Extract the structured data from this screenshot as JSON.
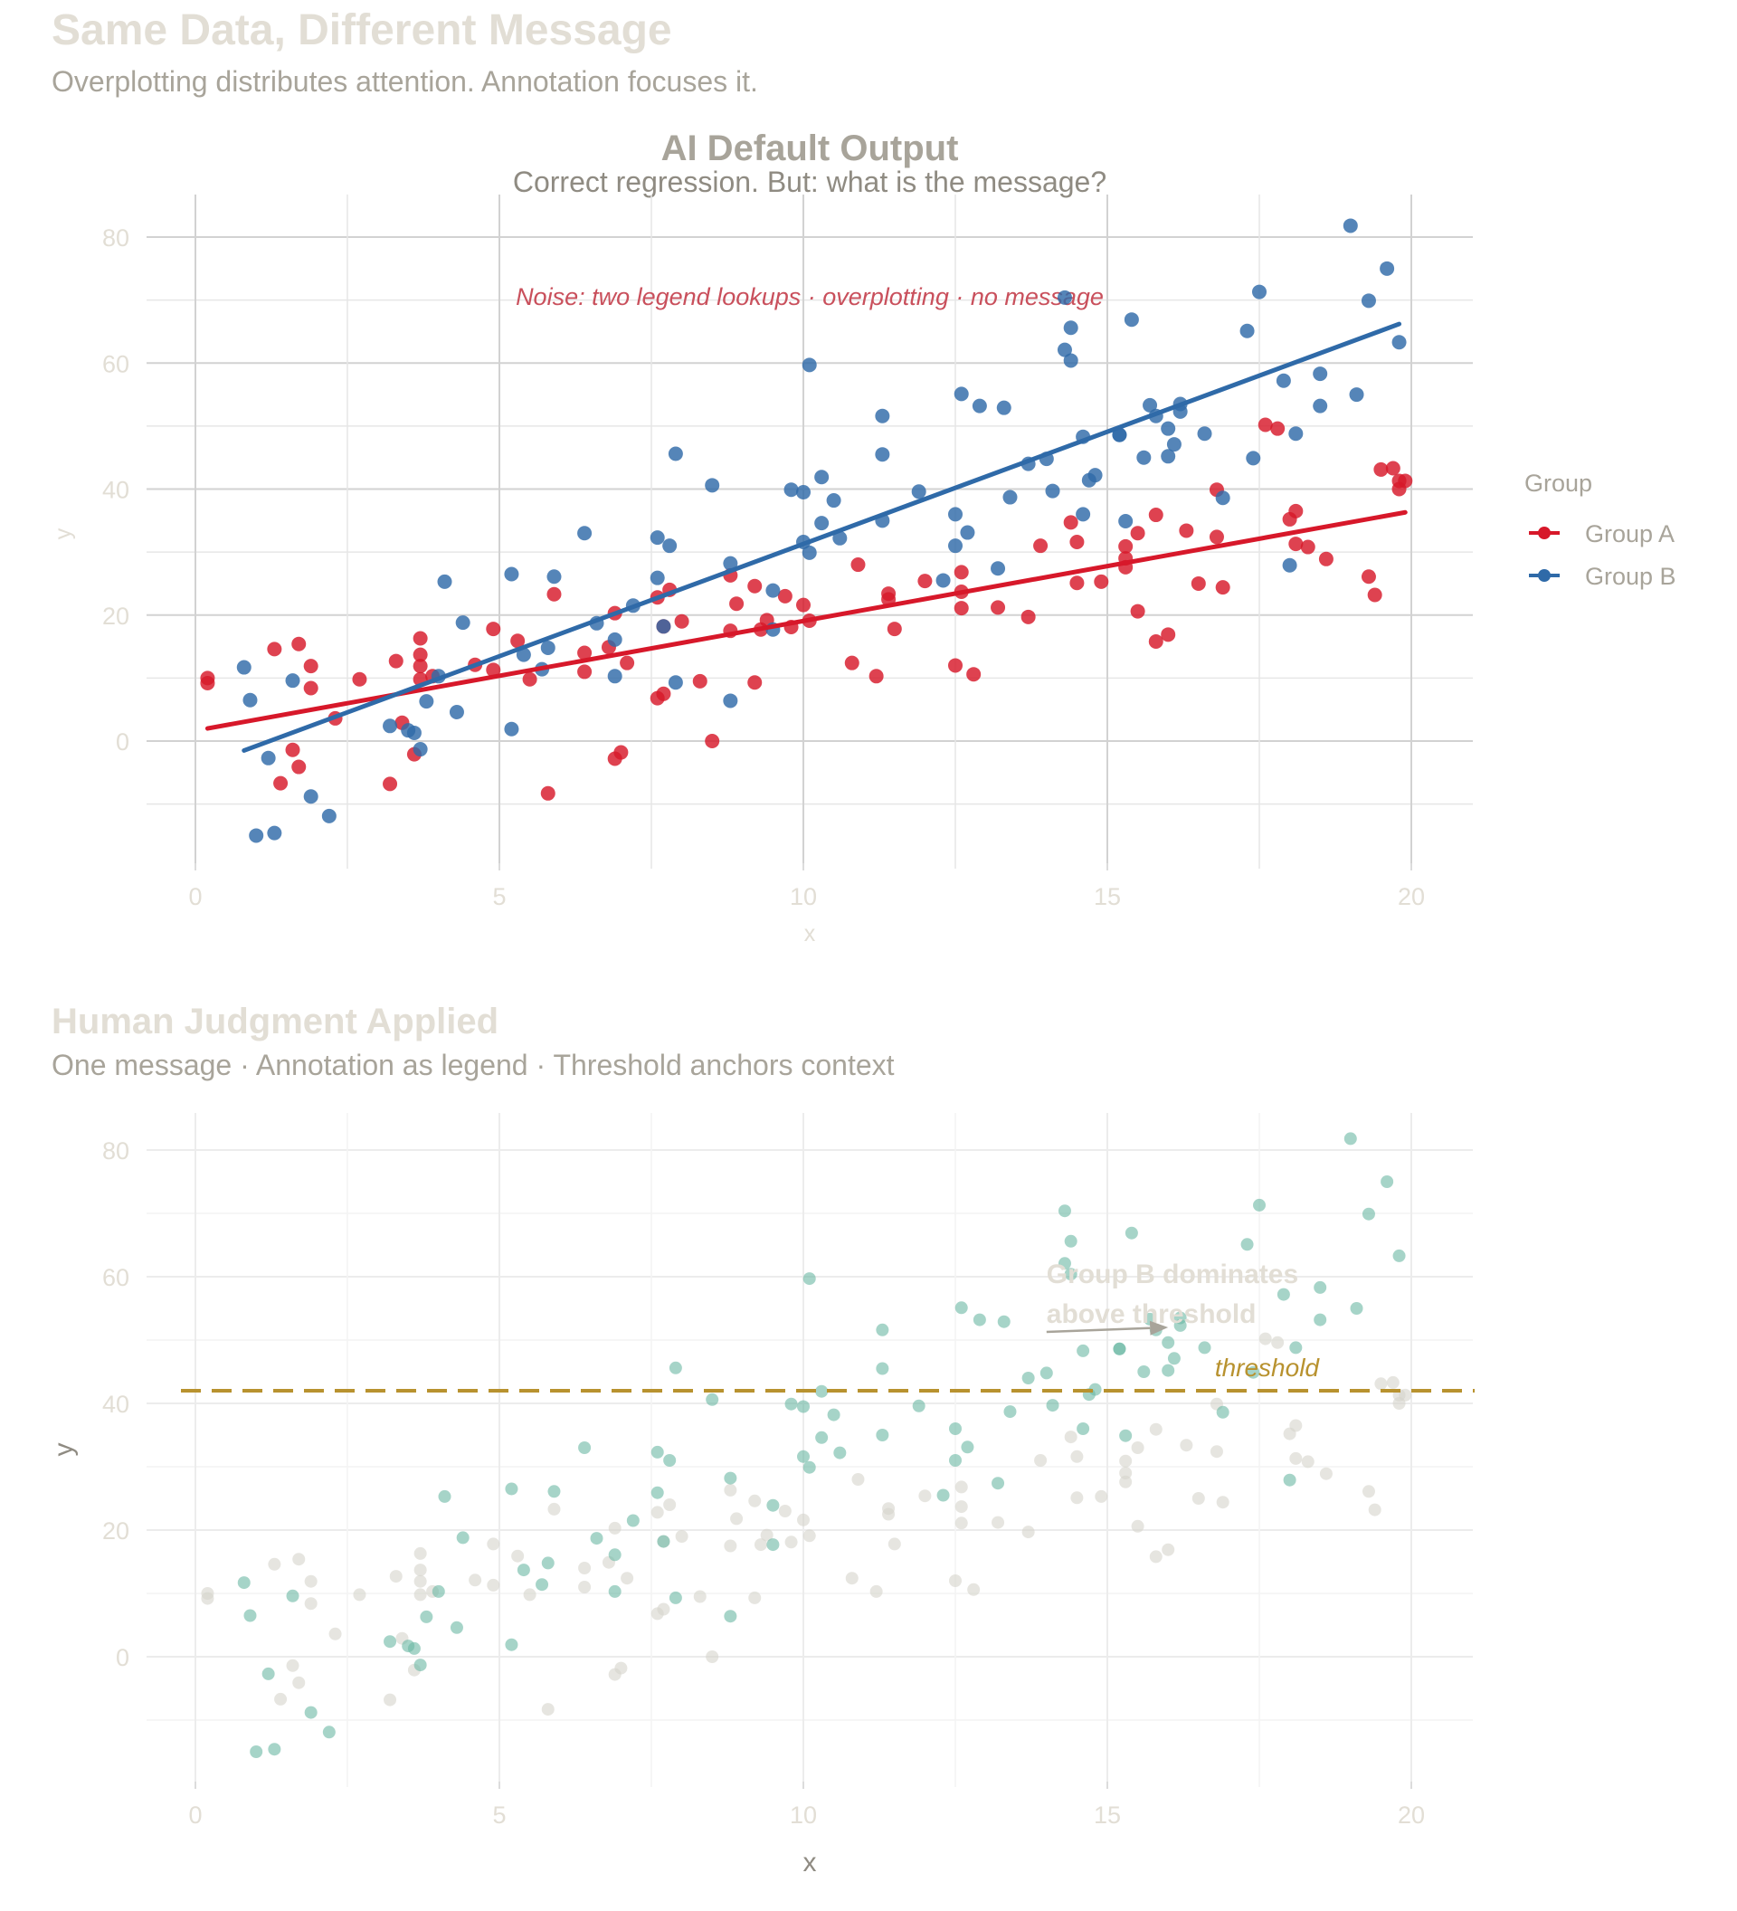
{
  "page": {
    "title": "Same Data, Different Message",
    "subtitle": "Overplotting distributes attention. Annotation focuses it."
  },
  "colors": {
    "group_a": "#d7182a",
    "group_b": "#2f6aa8",
    "highlight": "#6ab7a4",
    "muted": "#d6d3cc",
    "threshold": "#b8922f",
    "noise_text": "#c9505c",
    "grid": "#d9d9d9",
    "tick_text": "#e2ded5",
    "title_dark": "#a8a49a",
    "annotation_text": "#e2ded5"
  },
  "chart_data": [
    {
      "type": "scatter",
      "title": "AI Default Output",
      "subtitle": "Correct regression. But: what is the message?",
      "xlabel": "x",
      "ylabel": "y",
      "xlim": [
        -0.5,
        21
      ],
      "ylim": [
        -19,
        87
      ],
      "xticks": [
        0,
        5,
        10,
        15,
        20
      ],
      "yticks": [
        0,
        20,
        40,
        60,
        80
      ],
      "grid": true,
      "legend": {
        "title": "Group",
        "position": "right",
        "entries": [
          "Group A",
          "Group B"
        ]
      },
      "annotations": [
        {
          "text": "Noise: two legend lookups · overplotting · no message",
          "x": 10,
          "y": 70
        }
      ],
      "series": [
        {
          "name": "Group A",
          "regression": {
            "x": [
              0.2,
              19.9
            ],
            "y": [
              2.0,
              36.3
            ]
          },
          "points": [
            [
              0.2,
              10
            ],
            [
              0.2,
              9.2
            ],
            [
              1.3,
              14.6
            ],
            [
              1.4,
              -6.7
            ],
            [
              1.6,
              -1.4
            ],
            [
              1.7,
              15.4
            ],
            [
              1.7,
              -4.1
            ],
            [
              1.9,
              11.9
            ],
            [
              1.9,
              8.4
            ],
            [
              2.3,
              3.6
            ],
            [
              2.7,
              9.8
            ],
            [
              3.2,
              -6.8
            ],
            [
              3.3,
              12.7
            ],
            [
              3.4,
              2.9
            ],
            [
              3.6,
              -2.1
            ],
            [
              3.7,
              16.3
            ],
            [
              3.7,
              13.7
            ],
            [
              3.7,
              9.8
            ],
            [
              3.7,
              11.9
            ],
            [
              3.9,
              10.3
            ],
            [
              4.6,
              12.1
            ],
            [
              4.9,
              17.8
            ],
            [
              4.9,
              11.3
            ],
            [
              5.3,
              15.9
            ],
            [
              5.5,
              9.8
            ],
            [
              5.8,
              -8.3
            ],
            [
              5.9,
              23.3
            ],
            [
              6.4,
              14
            ],
            [
              6.4,
              11
            ],
            [
              6.8,
              14.9
            ],
            [
              6.9,
              20.3
            ],
            [
              6.9,
              -2.8
            ],
            [
              7,
              -1.8
            ],
            [
              7.1,
              12.4
            ],
            [
              7.6,
              22.8
            ],
            [
              7.6,
              6.8
            ],
            [
              7.7,
              7.5
            ],
            [
              7.7,
              18.2
            ],
            [
              7.8,
              24
            ],
            [
              8,
              19
            ],
            [
              8.3,
              9.5
            ],
            [
              8.5,
              0
            ],
            [
              8.8,
              17.5
            ],
            [
              8.8,
              26.3
            ],
            [
              8.9,
              21.8
            ],
            [
              9.2,
              9.3
            ],
            [
              9.2,
              24.6
            ],
            [
              9.3,
              17.7
            ],
            [
              9.4,
              19.2
            ],
            [
              9.7,
              23
            ],
            [
              9.8,
              18.1
            ],
            [
              10,
              21.6
            ],
            [
              10.1,
              19.1
            ],
            [
              10.8,
              12.4
            ],
            [
              10.9,
              28
            ],
            [
              11.2,
              10.3
            ],
            [
              11.4,
              22.5
            ],
            [
              11.4,
              23.4
            ],
            [
              11.5,
              17.8
            ],
            [
              12,
              25.4
            ],
            [
              12.5,
              12
            ],
            [
              12.6,
              23.7
            ],
            [
              12.6,
              26.8
            ],
            [
              12.6,
              21.1
            ],
            [
              12.8,
              10.6
            ],
            [
              13.2,
              21.2
            ],
            [
              13.7,
              19.7
            ],
            [
              13.9,
              31
            ],
            [
              14.4,
              34.7
            ],
            [
              14.5,
              25.1
            ],
            [
              14.5,
              31.6
            ],
            [
              14.9,
              25.3
            ],
            [
              15.3,
              29
            ],
            [
              15.3,
              30.9
            ],
            [
              15.3,
              27.6
            ],
            [
              15.5,
              20.6
            ],
            [
              15.5,
              33
            ],
            [
              15.8,
              35.9
            ],
            [
              15.8,
              15.8
            ],
            [
              16,
              16.9
            ],
            [
              16.3,
              33.4
            ],
            [
              16.5,
              25
            ],
            [
              16.8,
              32.4
            ],
            [
              16.8,
              39.9
            ],
            [
              16.9,
              24.4
            ],
            [
              17.6,
              50.2
            ],
            [
              17.8,
              49.6
            ],
            [
              18,
              35.2
            ],
            [
              18.1,
              36.5
            ],
            [
              18.1,
              31.3
            ],
            [
              18.3,
              30.8
            ],
            [
              18.6,
              28.9
            ],
            [
              19.3,
              26.1
            ],
            [
              19.4,
              23.2
            ],
            [
              19.5,
              43.1
            ],
            [
              19.7,
              43.3
            ],
            [
              19.8,
              41.3
            ],
            [
              19.8,
              40
            ],
            [
              19.9,
              41.3
            ]
          ]
        },
        {
          "name": "Group B",
          "regression": {
            "x": [
              0.8,
              19.8
            ],
            "y": [
              -1.5,
              66.2
            ]
          },
          "points": [
            [
              0.8,
              11.7
            ],
            [
              0.9,
              6.5
            ],
            [
              1,
              -15
            ],
            [
              1.2,
              -2.7
            ],
            [
              1.3,
              -14.6
            ],
            [
              1.6,
              9.6
            ],
            [
              1.9,
              -8.8
            ],
            [
              2.2,
              -11.9
            ],
            [
              3.2,
              2.4
            ],
            [
              3.5,
              1.7
            ],
            [
              3.6,
              1.3
            ],
            [
              3.7,
              -1.3
            ],
            [
              3.8,
              6.3
            ],
            [
              4,
              10.3
            ],
            [
              4.1,
              25.3
            ],
            [
              4.3,
              4.6
            ],
            [
              4.4,
              18.8
            ],
            [
              5.2,
              26.5
            ],
            [
              5.2,
              1.9
            ],
            [
              5.4,
              13.7
            ],
            [
              5.7,
              11.4
            ],
            [
              5.8,
              14.8
            ],
            [
              5.9,
              26.1
            ],
            [
              6.4,
              33
            ],
            [
              6.6,
              18.7
            ],
            [
              6.9,
              16.1
            ],
            [
              6.9,
              10.3
            ],
            [
              7.2,
              21.5
            ],
            [
              7.6,
              32.3
            ],
            [
              7.6,
              25.9
            ],
            [
              7.7,
              18.2
            ],
            [
              7.8,
              31
            ],
            [
              7.9,
              45.6
            ],
            [
              7.9,
              9.3
            ],
            [
              8.5,
              40.6
            ],
            [
              8.8,
              28.2
            ],
            [
              8.8,
              6.4
            ],
            [
              9.5,
              23.9
            ],
            [
              9.5,
              17.7
            ],
            [
              9.8,
              39.9
            ],
            [
              10,
              39.5
            ],
            [
              10,
              31.6
            ],
            [
              10.1,
              59.7
            ],
            [
              10.1,
              29.9
            ],
            [
              10.3,
              41.9
            ],
            [
              10.3,
              34.6
            ],
            [
              10.5,
              38.2
            ],
            [
              10.6,
              32.2
            ],
            [
              11.3,
              51.6
            ],
            [
              11.3,
              45.5
            ],
            [
              11.3,
              35
            ],
            [
              11.9,
              39.6
            ],
            [
              12.5,
              36
            ],
            [
              12.5,
              31
            ],
            [
              12.6,
              55.1
            ],
            [
              12.7,
              33.1
            ],
            [
              12.9,
              53.2
            ],
            [
              13.2,
              27.4
            ],
            [
              13.3,
              52.9
            ],
            [
              13.4,
              38.7
            ],
            [
              13.7,
              44
            ],
            [
              14,
              44.8
            ],
            [
              14.1,
              39.7
            ],
            [
              14.3,
              70.4
            ],
            [
              14.3,
              62.1
            ],
            [
              14.4,
              65.6
            ],
            [
              14.4,
              60.4
            ],
            [
              14.6,
              36
            ],
            [
              14.6,
              48.3
            ],
            [
              14.7,
              41.4
            ],
            [
              14.8,
              42.2
            ],
            [
              15.2,
              48.6
            ],
            [
              15.2,
              48.6
            ],
            [
              15.4,
              66.9
            ],
            [
              15.6,
              45
            ],
            [
              15.7,
              53.3
            ],
            [
              15.8,
              51.6
            ],
            [
              16,
              45.2
            ],
            [
              16,
              49.6
            ],
            [
              16.1,
              47.1
            ],
            [
              16.2,
              52.3
            ],
            [
              16.2,
              53.5
            ],
            [
              16.6,
              48.8
            ],
            [
              16.9,
              38.6
            ],
            [
              17.3,
              65.1
            ],
            [
              17.4,
              44.9
            ],
            [
              17.5,
              71.3
            ],
            [
              17.9,
              57.2
            ],
            [
              18,
              27.9
            ],
            [
              18.1,
              48.8
            ],
            [
              18.5,
              53.2
            ],
            [
              18.5,
              58.3
            ],
            [
              19,
              81.8
            ],
            [
              19.1,
              55
            ],
            [
              19.3,
              69.9
            ],
            [
              19.6,
              75
            ],
            [
              19.8,
              63.3
            ],
            [
              15.3,
              34.9
            ],
            [
              12.3,
              25.5
            ]
          ]
        }
      ]
    },
    {
      "type": "scatter",
      "title": "Human Judgment Applied",
      "subtitle": "One message · Annotation as legend · Threshold anchors context",
      "xlabel": "x",
      "ylabel": "y",
      "xlim": [
        -0.5,
        21
      ],
      "ylim": [
        -19,
        87
      ],
      "xticks": [
        0,
        5,
        10,
        15,
        20
      ],
      "yticks": [
        0,
        20,
        40,
        60,
        80
      ],
      "grid": true,
      "threshold": {
        "y": 42,
        "label": "threshold"
      },
      "annotations": [
        {
          "text": [
            "Group B dominates",
            "above threshold"
          ],
          "x": 14,
          "y": 61,
          "arrow_to": [
            16,
            52
          ]
        }
      ],
      "series_refs": {
        "highlight": "Group B",
        "muted": "Group A"
      }
    }
  ]
}
